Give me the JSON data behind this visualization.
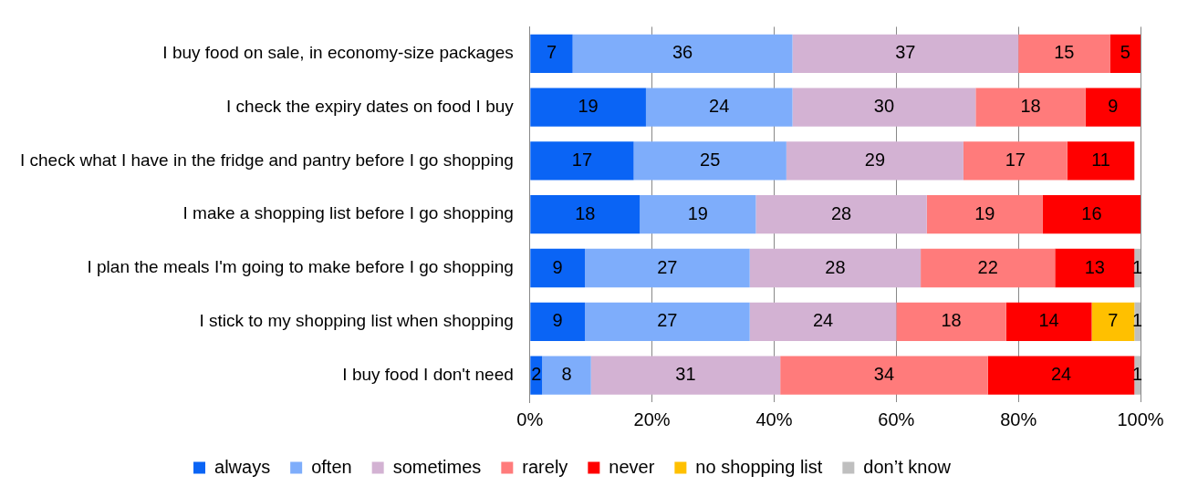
{
  "chart_data": {
    "type": "bar",
    "orientation": "horizontal",
    "stacked": true,
    "categories": [
      "I buy food on sale, in economy-size packages",
      "I check the expiry dates on food I buy",
      "I check what I have in the fridge and pantry before I go shopping",
      "I make a shopping list before I go shopping",
      "I plan the meals I'm going to make before I go shopping",
      "I stick to my shopping list when shopping",
      "I buy food I don't need"
    ],
    "series": [
      {
        "name": "always",
        "color": "#0a64f5",
        "values": [
          7,
          19,
          17,
          18,
          9,
          9,
          2
        ]
      },
      {
        "name": "often",
        "color": "#7eadfb",
        "values": [
          36,
          24,
          25,
          19,
          27,
          27,
          8
        ]
      },
      {
        "name": "sometimes",
        "color": "#d3b2d3",
        "values": [
          37,
          30,
          29,
          28,
          28,
          24,
          31
        ]
      },
      {
        "name": "rarely",
        "color": "#ff7b7b",
        "values": [
          15,
          18,
          17,
          19,
          22,
          18,
          34
        ]
      },
      {
        "name": "never",
        "color": "#ff0000",
        "values": [
          5,
          9,
          11,
          16,
          13,
          14,
          24
        ]
      },
      {
        "name": "no shopping list",
        "color": "#ffc000",
        "values": [
          null,
          null,
          null,
          null,
          null,
          7,
          null
        ]
      },
      {
        "name": "don’t know",
        "color": "#bfbfbf",
        "values": [
          null,
          null,
          null,
          null,
          1,
          1,
          1
        ]
      }
    ],
    "xlim": [
      0,
      100
    ],
    "xticks": [
      {
        "value": 0,
        "label": "0%"
      },
      {
        "value": 20,
        "label": "20%"
      },
      {
        "value": 40,
        "label": "40%"
      },
      {
        "value": 60,
        "label": "60%"
      },
      {
        "value": 80,
        "label": "80%"
      },
      {
        "value": 100,
        "label": "100%"
      }
    ],
    "grid": "x",
    "legend": "bottom",
    "data_labels": true
  }
}
